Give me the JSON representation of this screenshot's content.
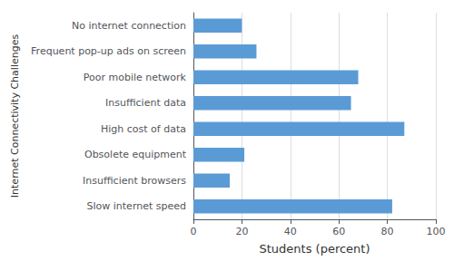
{
  "chart_data": {
    "type": "bar",
    "orientation": "horizontal",
    "categories": [
      "Slow internet speed",
      "Insufficient browsers",
      "Obsolete equipment",
      "High cost of data",
      "Insufficient data",
      "Poor mobile network",
      "Frequent pop-up ads on screen",
      "No internet connection"
    ],
    "values": [
      82,
      15,
      21,
      87,
      65,
      68,
      26,
      20
    ],
    "color": "#5b9bd5",
    "xlabel": "Students (percent)",
    "ylabel": "Internet Connectivity Challenges",
    "xlim": [
      0,
      100
    ],
    "xticks": [
      0,
      20,
      40,
      60,
      80,
      100
    ],
    "grid": true
  }
}
